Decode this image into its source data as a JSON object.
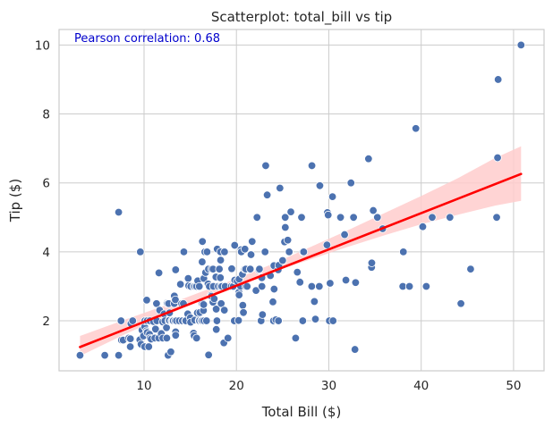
{
  "chart_data": {
    "type": "scatter",
    "title": "Scatterplot: total_bill vs tip",
    "xlabel": "Total Bill ($)",
    "ylabel": "Tip ($)",
    "xlim": [
      0.8,
      53.3
    ],
    "ylim": [
      0.55,
      10.45
    ],
    "xticks": [
      10,
      20,
      30,
      40,
      50
    ],
    "yticks": [
      2,
      4,
      6,
      8,
      10
    ],
    "grid": true,
    "annotation": "Pearson correlation: 0.68",
    "colors": {
      "points": "#4c72b0",
      "regression": "#ff0000",
      "ci_band": "#ffcccc",
      "grid": "#cccccc",
      "annotation": "#0000cc",
      "spine": "#cccccc"
    },
    "regression": {
      "x": [
        3.07,
        50.81
      ],
      "y": [
        1.24,
        6.26
      ],
      "ci_lower": [
        [
          3.07,
          0.98
        ],
        [
          8,
          1.62
        ],
        [
          12,
          2.1
        ],
        [
          16,
          2.6
        ],
        [
          19.8,
          3.0
        ],
        [
          24,
          3.42
        ],
        [
          28,
          3.78
        ],
        [
          32,
          4.14
        ],
        [
          36,
          4.48
        ],
        [
          40,
          4.8
        ],
        [
          44,
          5.08
        ],
        [
          48,
          5.34
        ],
        [
          50.81,
          5.48
        ]
      ],
      "ci_upper": [
        [
          3.07,
          1.56
        ],
        [
          8,
          2.04
        ],
        [
          12,
          2.42
        ],
        [
          16,
          2.82
        ],
        [
          19.8,
          3.2
        ],
        [
          24,
          3.66
        ],
        [
          28,
          4.14
        ],
        [
          32,
          4.62
        ],
        [
          36,
          5.12
        ],
        [
          40,
          5.62
        ],
        [
          44,
          6.14
        ],
        [
          48,
          6.72
        ],
        [
          50.81,
          7.06
        ]
      ]
    },
    "points": [
      [
        3.07,
        1.0
      ],
      [
        5.75,
        1.0
      ],
      [
        7.25,
        1.0
      ],
      [
        7.25,
        5.15
      ],
      [
        7.51,
        2.0
      ],
      [
        7.56,
        1.44
      ],
      [
        7.74,
        1.44
      ],
      [
        8.35,
        1.5
      ],
      [
        8.51,
        1.25
      ],
      [
        8.52,
        1.48
      ],
      [
        8.58,
        1.92
      ],
      [
        8.77,
        2.0
      ],
      [
        9.55,
        1.45
      ],
      [
        9.6,
        4.0
      ],
      [
        9.68,
        1.32
      ],
      [
        9.78,
        1.73
      ],
      [
        9.94,
        1.56
      ],
      [
        10.07,
        1.25
      ],
      [
        10.07,
        1.83
      ],
      [
        10.09,
        2.0
      ],
      [
        10.27,
        1.71
      ],
      [
        10.29,
        2.6
      ],
      [
        10.33,
        1.67
      ],
      [
        10.33,
        2.0
      ],
      [
        10.34,
        1.66
      ],
      [
        10.34,
        2.0
      ],
      [
        10.51,
        1.25
      ],
      [
        10.59,
        1.61
      ],
      [
        10.63,
        2.0
      ],
      [
        10.65,
        1.5
      ],
      [
        10.77,
        1.47
      ],
      [
        11.02,
        1.98
      ],
      [
        11.17,
        1.5
      ],
      [
        11.24,
        1.76
      ],
      [
        11.35,
        2.5
      ],
      [
        11.38,
        2.0
      ],
      [
        11.59,
        1.5
      ],
      [
        11.61,
        3.39
      ],
      [
        11.69,
        2.31
      ],
      [
        11.87,
        1.63
      ],
      [
        12.02,
        1.97
      ],
      [
        12.03,
        1.5
      ],
      [
        12.16,
        2.2
      ],
      [
        12.26,
        2.0
      ],
      [
        12.43,
        1.8
      ],
      [
        12.46,
        1.5
      ],
      [
        12.48,
        2.52
      ],
      [
        12.54,
        2.5
      ],
      [
        12.6,
        1.0
      ],
      [
        12.66,
        2.5
      ],
      [
        12.69,
        2.0
      ],
      [
        12.74,
        2.01
      ],
      [
        12.76,
        2.23
      ],
      [
        12.9,
        1.1
      ],
      [
        13.0,
        2.0
      ],
      [
        13.03,
        2.0
      ],
      [
        13.13,
        2.0
      ],
      [
        13.16,
        2.0
      ],
      [
        13.27,
        2.5
      ],
      [
        13.28,
        2.72
      ],
      [
        13.37,
        2.0
      ],
      [
        13.39,
        2.61
      ],
      [
        13.42,
        1.68
      ],
      [
        13.42,
        3.48
      ],
      [
        13.42,
        1.58
      ],
      [
        13.51,
        2.0
      ],
      [
        13.81,
        2.0
      ],
      [
        13.94,
        3.06
      ],
      [
        14.07,
        2.5
      ],
      [
        14.15,
        2.0
      ],
      [
        14.26,
        2.5
      ],
      [
        14.31,
        4.0
      ],
      [
        14.48,
        2.0
      ],
      [
        14.52,
        2.0
      ],
      [
        14.73,
        2.2
      ],
      [
        14.78,
        3.23
      ],
      [
        14.83,
        3.02
      ],
      [
        15.01,
        2.09
      ],
      [
        15.04,
        1.96
      ],
      [
        15.06,
        3.0
      ],
      [
        15.36,
        1.64
      ],
      [
        15.38,
        3.0
      ],
      [
        15.42,
        1.57
      ],
      [
        15.48,
        2.02
      ],
      [
        15.53,
        3.0
      ],
      [
        15.69,
        1.5
      ],
      [
        15.69,
        3.0
      ],
      [
        15.77,
        2.23
      ],
      [
        15.81,
        3.16
      ],
      [
        15.95,
        2.0
      ],
      [
        15.98,
        2.03
      ],
      [
        15.98,
        3.0
      ],
      [
        16.0,
        2.0
      ],
      [
        16.04,
        2.24
      ],
      [
        16.21,
        2.0
      ],
      [
        16.27,
        2.5
      ],
      [
        16.29,
        3.71
      ],
      [
        16.31,
        2.0
      ],
      [
        16.32,
        4.3
      ],
      [
        16.4,
        2.5
      ],
      [
        16.43,
        2.3
      ],
      [
        16.45,
        2.47
      ],
      [
        16.47,
        3.23
      ],
      [
        16.49,
        2.0
      ],
      [
        16.58,
        4.0
      ],
      [
        16.66,
        3.4
      ],
      [
        16.76,
        2.0
      ],
      [
        16.82,
        4.0
      ],
      [
        16.93,
        3.07
      ],
      [
        16.97,
        3.5
      ],
      [
        16.99,
        1.01
      ],
      [
        17.07,
        3.0
      ],
      [
        17.26,
        2.74
      ],
      [
        17.29,
        2.71
      ],
      [
        17.31,
        3.5
      ],
      [
        17.46,
        2.54
      ],
      [
        17.47,
        3.5
      ],
      [
        17.51,
        3.0
      ],
      [
        17.59,
        2.64
      ],
      [
        17.78,
        3.27
      ],
      [
        17.81,
        2.34
      ],
      [
        17.82,
        1.75
      ],
      [
        17.89,
        2.0
      ],
      [
        17.92,
        4.08
      ],
      [
        18.04,
        3.0
      ],
      [
        18.15,
        3.5
      ],
      [
        18.24,
        3.76
      ],
      [
        18.26,
        3.25
      ],
      [
        18.28,
        4.0
      ],
      [
        18.29,
        3.76
      ],
      [
        18.29,
        3.0
      ],
      [
        18.35,
        2.5
      ],
      [
        18.43,
        3.0
      ],
      [
        18.64,
        1.36
      ],
      [
        18.69,
        2.31
      ],
      [
        18.71,
        4.0
      ],
      [
        18.78,
        3.0
      ],
      [
        19.08,
        1.5
      ],
      [
        19.44,
        3.0
      ],
      [
        19.49,
        3.51
      ],
      [
        19.65,
        3.0
      ],
      [
        19.77,
        2.0
      ],
      [
        19.81,
        4.19
      ],
      [
        19.82,
        3.18
      ],
      [
        20.08,
        3.15
      ],
      [
        20.23,
        2.01
      ],
      [
        20.27,
        2.83
      ],
      [
        20.29,
        2.75
      ],
      [
        20.29,
        3.21
      ],
      [
        20.45,
        3.0
      ],
      [
        20.49,
        4.06
      ],
      [
        20.53,
        4.0
      ],
      [
        20.65,
        3.35
      ],
      [
        20.69,
        2.45
      ],
      [
        20.76,
        2.24
      ],
      [
        20.9,
        3.5
      ],
      [
        20.92,
        4.08
      ],
      [
        21.01,
        3.5
      ],
      [
        21.01,
        3.0
      ],
      [
        21.16,
        3.0
      ],
      [
        21.5,
        3.5
      ],
      [
        21.58,
        3.92
      ],
      [
        21.7,
        4.3
      ],
      [
        22.12,
        2.88
      ],
      [
        22.23,
        5.0
      ],
      [
        22.42,
        3.48
      ],
      [
        22.49,
        3.5
      ],
      [
        22.67,
        2.0
      ],
      [
        22.75,
        3.25
      ],
      [
        22.76,
        3.0
      ],
      [
        22.82,
        2.18
      ],
      [
        23.1,
        4.0
      ],
      [
        23.17,
        6.5
      ],
      [
        23.33,
        5.65
      ],
      [
        23.68,
        3.31
      ],
      [
        23.95,
        2.55
      ],
      [
        24.01,
        2.0
      ],
      [
        24.06,
        3.6
      ],
      [
        24.08,
        2.92
      ],
      [
        24.27,
        2.03
      ],
      [
        24.52,
        3.48
      ],
      [
        24.55,
        2.0
      ],
      [
        24.59,
        3.61
      ],
      [
        24.71,
        5.85
      ],
      [
        25.0,
        3.75
      ],
      [
        25.21,
        4.29
      ],
      [
        25.28,
        5.0
      ],
      [
        25.29,
        4.71
      ],
      [
        25.56,
        4.34
      ],
      [
        25.71,
        4.0
      ],
      [
        25.89,
        5.16
      ],
      [
        26.41,
        1.5
      ],
      [
        26.59,
        3.41
      ],
      [
        26.86,
        3.14
      ],
      [
        26.88,
        3.12
      ],
      [
        27.05,
        5.0
      ],
      [
        27.18,
        2.0
      ],
      [
        27.2,
        4.0
      ],
      [
        27.28,
        4.0
      ],
      [
        28.15,
        3.0
      ],
      [
        28.17,
        6.5
      ],
      [
        28.44,
        2.56
      ],
      [
        28.55,
        2.05
      ],
      [
        28.97,
        3.0
      ],
      [
        29.03,
        5.92
      ],
      [
        29.8,
        4.2
      ],
      [
        29.85,
        5.14
      ],
      [
        29.93,
        5.07
      ],
      [
        30.06,
        2.0
      ],
      [
        30.14,
        3.09
      ],
      [
        30.4,
        5.6
      ],
      [
        30.46,
        2.0
      ],
      [
        31.27,
        5.0
      ],
      [
        31.71,
        4.5
      ],
      [
        31.85,
        3.18
      ],
      [
        32.4,
        6.0
      ],
      [
        32.68,
        5.0
      ],
      [
        32.83,
        1.17
      ],
      [
        32.9,
        3.11
      ],
      [
        34.3,
        6.7
      ],
      [
        34.63,
        3.55
      ],
      [
        34.65,
        3.68
      ],
      [
        34.81,
        5.2
      ],
      [
        35.26,
        5.0
      ],
      [
        35.83,
        4.67
      ],
      [
        38.01,
        3.0
      ],
      [
        38.07,
        4.0
      ],
      [
        38.73,
        3.0
      ],
      [
        39.42,
        7.58
      ],
      [
        40.17,
        4.73
      ],
      [
        40.55,
        3.0
      ],
      [
        41.19,
        5.0
      ],
      [
        43.11,
        5.0
      ],
      [
        44.3,
        2.5
      ],
      [
        45.35,
        3.5
      ],
      [
        48.17,
        5.0
      ],
      [
        48.27,
        6.73
      ],
      [
        48.33,
        9.0
      ],
      [
        50.81,
        10.0
      ]
    ]
  }
}
